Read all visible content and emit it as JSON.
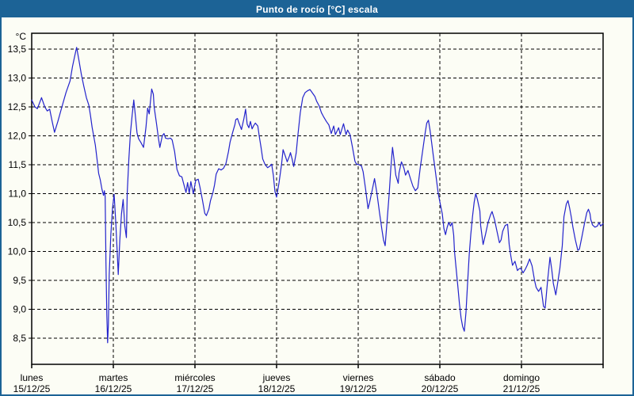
{
  "window": {
    "title": "Punto de rocío [°C] escala"
  },
  "colors": {
    "titlebar": "#1c6396",
    "window_border": "#1c6396",
    "background": "#fcfdf5",
    "line": "#2323cc",
    "grid": "#000000",
    "text": "#000000"
  },
  "chart_data": {
    "type": "line",
    "title": "Punto de rocío [°C] escala",
    "ylabel_unit": "°C",
    "ylim": [
      8.05,
      13.77
    ],
    "xlim_days": [
      0,
      7
    ],
    "grid": "dashed",
    "legend": "none",
    "y_ticks": [
      {
        "value": 13.5,
        "label": "13,5"
      },
      {
        "value": 13.0,
        "label": "13,0"
      },
      {
        "value": 12.5,
        "label": "12,5"
      },
      {
        "value": 12.0,
        "label": "12,0"
      },
      {
        "value": 11.5,
        "label": "11,5"
      },
      {
        "value": 11.0,
        "label": "11,0"
      },
      {
        "value": 10.5,
        "label": "10,5"
      },
      {
        "value": 10.0,
        "label": "10,0"
      },
      {
        "value": 9.5,
        "label": "9,5"
      },
      {
        "value": 9.0,
        "label": "9,0"
      },
      {
        "value": 8.5,
        "label": "8,5"
      }
    ],
    "x_ticks": [
      {
        "day": 0,
        "name": "lunes",
        "date": "15/12/25"
      },
      {
        "day": 1,
        "name": "martes",
        "date": "16/12/25"
      },
      {
        "day": 2,
        "name": "miércoles",
        "date": "17/12/25"
      },
      {
        "day": 3,
        "name": "jueves",
        "date": "18/12/25"
      },
      {
        "day": 4,
        "name": "viernes",
        "date": "19/12/25"
      },
      {
        "day": 5,
        "name": "sábado",
        "date": "20/12/25"
      },
      {
        "day": 6,
        "name": "domingo",
        "date": "21/12/25"
      }
    ],
    "series": [
      {
        "name": "Punto de rocío",
        "color": "#2323cc",
        "points": [
          [
            0,
            12.62
          ],
          [
            0.04,
            12.5
          ],
          [
            0.07,
            12.47
          ],
          [
            0.12,
            12.66
          ],
          [
            0.16,
            12.5
          ],
          [
            0.19,
            12.43
          ],
          [
            0.22,
            12.46
          ],
          [
            0.25,
            12.25
          ],
          [
            0.28,
            12.06
          ],
          [
            0.32,
            12.25
          ],
          [
            0.37,
            12.5
          ],
          [
            0.42,
            12.75
          ],
          [
            0.47,
            12.95
          ],
          [
            0.5,
            13.2
          ],
          [
            0.53,
            13.4
          ],
          [
            0.55,
            13.53
          ],
          [
            0.58,
            13.3
          ],
          [
            0.61,
            13.05
          ],
          [
            0.64,
            12.85
          ],
          [
            0.67,
            12.66
          ],
          [
            0.7,
            12.53
          ],
          [
            0.72,
            12.35
          ],
          [
            0.74,
            12.15
          ],
          [
            0.76,
            11.99
          ],
          [
            0.78,
            11.84
          ],
          [
            0.8,
            11.6
          ],
          [
            0.82,
            11.35
          ],
          [
            0.84,
            11.24
          ],
          [
            0.86,
            11.08
          ],
          [
            0.88,
            10.97
          ],
          [
            0.89,
            11.05
          ],
          [
            0.9,
            10.95
          ],
          [
            0.91,
            9.8
          ],
          [
            0.92,
            8.9
          ],
          [
            0.93,
            8.42
          ],
          [
            0.94,
            8.75
          ],
          [
            0.95,
            9.6
          ],
          [
            0.97,
            10.3
          ],
          [
            0.99,
            10.75
          ],
          [
            1.01,
            10.99
          ],
          [
            1.03,
            10.5
          ],
          [
            1.05,
            9.9
          ],
          [
            1.06,
            9.6
          ],
          [
            1.08,
            10.2
          ],
          [
            1.1,
            10.65
          ],
          [
            1.12,
            10.9
          ],
          [
            1.14,
            10.45
          ],
          [
            1.16,
            10.24
          ],
          [
            1.17,
            11
          ],
          [
            1.19,
            11.6
          ],
          [
            1.21,
            12.05
          ],
          [
            1.23,
            12.35
          ],
          [
            1.25,
            12.62
          ],
          [
            1.27,
            12.35
          ],
          [
            1.29,
            12.05
          ],
          [
            1.31,
            11.95
          ],
          [
            1.34,
            11.88
          ],
          [
            1.37,
            11.8
          ],
          [
            1.4,
            12.15
          ],
          [
            1.42,
            12.48
          ],
          [
            1.44,
            12.38
          ],
          [
            1.47,
            12.81
          ],
          [
            1.49,
            12.72
          ],
          [
            1.5,
            12.5
          ],
          [
            1.53,
            12.2
          ],
          [
            1.55,
            11.98
          ],
          [
            1.57,
            11.8
          ],
          [
            1.6,
            12
          ],
          [
            1.62,
            12.04
          ],
          [
            1.64,
            11.96
          ],
          [
            1.67,
            11.95
          ],
          [
            1.7,
            11.96
          ],
          [
            1.72,
            11.93
          ],
          [
            1.75,
            11.73
          ],
          [
            1.78,
            11.42
          ],
          [
            1.81,
            11.31
          ],
          [
            1.84,
            11.29
          ],
          [
            1.86,
            11.18
          ],
          [
            1.89,
            11.02
          ],
          [
            1.91,
            11.19
          ],
          [
            1.93,
            11.01
          ],
          [
            1.95,
            11.21
          ],
          [
            1.98,
            11
          ],
          [
            2.01,
            11.23
          ],
          [
            2.04,
            11.25
          ],
          [
            2.06,
            11.12
          ],
          [
            2.09,
            10.9
          ],
          [
            2.12,
            10.66
          ],
          [
            2.14,
            10.62
          ],
          [
            2.17,
            10.73
          ],
          [
            2.19,
            10.88
          ],
          [
            2.22,
            11.02
          ],
          [
            2.24,
            11.15
          ],
          [
            2.26,
            11.34
          ],
          [
            2.29,
            11.43
          ],
          [
            2.32,
            11.41
          ],
          [
            2.35,
            11.44
          ],
          [
            2.38,
            11.52
          ],
          [
            2.41,
            11.72
          ],
          [
            2.43,
            11.89
          ],
          [
            2.46,
            12.05
          ],
          [
            2.49,
            12.2
          ],
          [
            2.5,
            12.28
          ],
          [
            2.52,
            12.3
          ],
          [
            2.54,
            12.22
          ],
          [
            2.57,
            12.11
          ],
          [
            2.6,
            12.3
          ],
          [
            2.62,
            12.46
          ],
          [
            2.64,
            12.2
          ],
          [
            2.66,
            12.14
          ],
          [
            2.68,
            12.25
          ],
          [
            2.7,
            12.12
          ],
          [
            2.72,
            12.18
          ],
          [
            2.74,
            12.22
          ],
          [
            2.77,
            12.17
          ],
          [
            2.79,
            11.97
          ],
          [
            2.81,
            11.8
          ],
          [
            2.83,
            11.6
          ],
          [
            2.86,
            11.5
          ],
          [
            2.89,
            11.45
          ],
          [
            2.92,
            11.48
          ],
          [
            2.94,
            11.51
          ],
          [
            2.96,
            11.32
          ],
          [
            2.98,
            11.04
          ],
          [
            3,
            10.94
          ],
          [
            3.03,
            11.19
          ],
          [
            3.06,
            11.5
          ],
          [
            3.08,
            11.76
          ],
          [
            3.11,
            11.64
          ],
          [
            3.13,
            11.55
          ],
          [
            3.16,
            11.66
          ],
          [
            3.17,
            11.71
          ],
          [
            3.19,
            11.6
          ],
          [
            3.21,
            11.47
          ],
          [
            3.24,
            11.7
          ],
          [
            3.26,
            12
          ],
          [
            3.29,
            12.4
          ],
          [
            3.32,
            12.66
          ],
          [
            3.35,
            12.75
          ],
          [
            3.38,
            12.78
          ],
          [
            3.41,
            12.8
          ],
          [
            3.44,
            12.74
          ],
          [
            3.47,
            12.68
          ],
          [
            3.49,
            12.6
          ],
          [
            3.52,
            12.52
          ],
          [
            3.55,
            12.4
          ],
          [
            3.58,
            12.32
          ],
          [
            3.61,
            12.25
          ],
          [
            3.64,
            12.19
          ],
          [
            3.67,
            12.04
          ],
          [
            3.7,
            12.17
          ],
          [
            3.72,
            12.02
          ],
          [
            3.76,
            12.14
          ],
          [
            3.78,
            12.02
          ],
          [
            3.82,
            12.21
          ],
          [
            3.85,
            12.02
          ],
          [
            3.87,
            12.1
          ],
          [
            3.9,
            12.02
          ],
          [
            3.93,
            11.8
          ],
          [
            3.96,
            11.56
          ],
          [
            3.98,
            11.51
          ],
          [
            4.01,
            11.5
          ],
          [
            4.04,
            11.48
          ],
          [
            4.06,
            11.38
          ],
          [
            4.09,
            11.08
          ],
          [
            4.12,
            10.74
          ],
          [
            4.14,
            10.85
          ],
          [
            4.17,
            11.05
          ],
          [
            4.2,
            11.26
          ],
          [
            4.23,
            11
          ],
          [
            4.26,
            10.68
          ],
          [
            4.29,
            10.38
          ],
          [
            4.31,
            10.2
          ],
          [
            4.33,
            10.1
          ],
          [
            4.35,
            10.45
          ],
          [
            4.38,
            11
          ],
          [
            4.4,
            11.45
          ],
          [
            4.42,
            11.8
          ],
          [
            4.44,
            11.58
          ],
          [
            4.46,
            11.32
          ],
          [
            4.49,
            11.18
          ],
          [
            4.5,
            11.36
          ],
          [
            4.53,
            11.55
          ],
          [
            4.56,
            11.44
          ],
          [
            4.58,
            11.32
          ],
          [
            4.61,
            11.4
          ],
          [
            4.64,
            11.26
          ],
          [
            4.67,
            11.13
          ],
          [
            4.7,
            11.05
          ],
          [
            4.73,
            11.1
          ],
          [
            4.76,
            11.45
          ],
          [
            4.79,
            11.75
          ],
          [
            4.82,
            12.05
          ],
          [
            4.84,
            12.22
          ],
          [
            4.86,
            12.27
          ],
          [
            4.88,
            12.1
          ],
          [
            4.9,
            11.88
          ],
          [
            4.92,
            11.65
          ],
          [
            4.95,
            11.33
          ],
          [
            4.98,
            11.01
          ],
          [
            5,
            10.86
          ],
          [
            5.03,
            10.65
          ],
          [
            5.05,
            10.4
          ],
          [
            5.07,
            10.29
          ],
          [
            5.09,
            10.42
          ],
          [
            5.11,
            10.5
          ],
          [
            5.13,
            10.44
          ],
          [
            5.15,
            10.5
          ],
          [
            5.17,
            10.28
          ],
          [
            5.18,
            10
          ],
          [
            5.2,
            9.7
          ],
          [
            5.22,
            9.4
          ],
          [
            5.24,
            9.1
          ],
          [
            5.26,
            8.85
          ],
          [
            5.28,
            8.7
          ],
          [
            5.3,
            8.62
          ],
          [
            5.32,
            8.95
          ],
          [
            5.34,
            9.45
          ],
          [
            5.36,
            9.95
          ],
          [
            5.38,
            10.3
          ],
          [
            5.4,
            10.6
          ],
          [
            5.42,
            10.85
          ],
          [
            5.44,
            11
          ],
          [
            5.46,
            10.9
          ],
          [
            5.49,
            10.7
          ],
          [
            5.5,
            10.45
          ],
          [
            5.53,
            10.12
          ],
          [
            5.56,
            10.3
          ],
          [
            5.59,
            10.5
          ],
          [
            5.62,
            10.63
          ],
          [
            5.64,
            10.69
          ],
          [
            5.67,
            10.55
          ],
          [
            5.7,
            10.35
          ],
          [
            5.73,
            10.15
          ],
          [
            5.75,
            10.2
          ],
          [
            5.77,
            10.35
          ],
          [
            5.8,
            10.45
          ],
          [
            5.83,
            10.47
          ],
          [
            5.85,
            10.12
          ],
          [
            5.87,
            9.92
          ],
          [
            5.89,
            9.76
          ],
          [
            5.92,
            9.83
          ],
          [
            5.95,
            9.67
          ],
          [
            5.97,
            9.7
          ],
          [
            5.99,
            9.71
          ],
          [
            6.02,
            9.63
          ],
          [
            6.05,
            9.7
          ],
          [
            6.07,
            9.76
          ],
          [
            6.1,
            9.87
          ],
          [
            6.13,
            9.75
          ],
          [
            6.16,
            9.5
          ],
          [
            6.18,
            9.38
          ],
          [
            6.21,
            9.31
          ],
          [
            6.24,
            9.38
          ],
          [
            6.27,
            9.05
          ],
          [
            6.29,
            9.02
          ],
          [
            6.32,
            9.5
          ],
          [
            6.35,
            9.9
          ],
          [
            6.37,
            9.7
          ],
          [
            6.39,
            9.45
          ],
          [
            6.42,
            9.25
          ],
          [
            6.44,
            9.42
          ],
          [
            6.47,
            9.7
          ],
          [
            6.5,
            10.1
          ],
          [
            6.52,
            10.6
          ],
          [
            6.55,
            10.82
          ],
          [
            6.57,
            10.88
          ],
          [
            6.59,
            10.75
          ],
          [
            6.61,
            10.6
          ],
          [
            6.63,
            10.42
          ],
          [
            6.66,
            10.2
          ],
          [
            6.69,
            10.02
          ],
          [
            6.71,
            10.04
          ],
          [
            6.74,
            10.25
          ],
          [
            6.77,
            10.47
          ],
          [
            6.8,
            10.67
          ],
          [
            6.82,
            10.73
          ],
          [
            6.84,
            10.65
          ],
          [
            6.85,
            10.55
          ],
          [
            6.87,
            10.46
          ],
          [
            6.9,
            10.42
          ],
          [
            6.93,
            10.44
          ],
          [
            6.95,
            10.5
          ],
          [
            6.97,
            10.44
          ],
          [
            7,
            10.48
          ]
        ]
      }
    ]
  }
}
